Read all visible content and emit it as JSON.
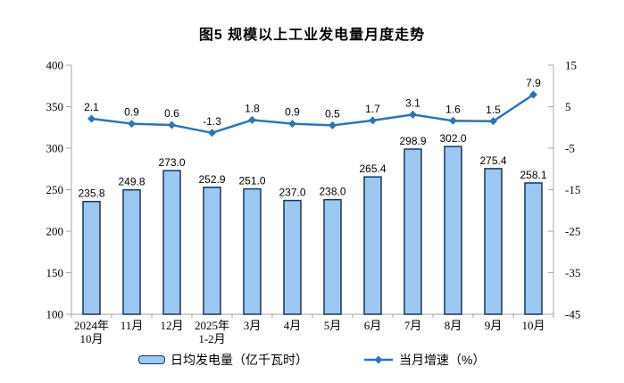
{
  "title": "图5 规模以上工业发电量月度走势",
  "legend": {
    "bar_label": "日均发电量（亿千瓦时）",
    "line_label": "当月增速（%）"
  },
  "colors": {
    "bar_fill": "#9CC7F0",
    "bar_border": "#17365D",
    "line": "#2E74B5",
    "axis": "#A6A6A6",
    "text": "#000000"
  },
  "chart_data": {
    "type": "combo",
    "title": "图5 规模以上工业发电量月度走势",
    "categories": [
      "2024年\n10月",
      "11月",
      "12月",
      "2025年\n1-2月",
      "3月",
      "4月",
      "5月",
      "6月",
      "7月",
      "8月",
      "9月",
      "10月"
    ],
    "series": [
      {
        "name": "日均发电量（亿千瓦时）",
        "type": "bar",
        "axis": "left",
        "values": [
          235.8,
          249.8,
          273.0,
          252.9,
          251.0,
          237.0,
          238.0,
          265.4,
          298.9,
          302.0,
          275.4,
          258.1
        ]
      },
      {
        "name": "当月增速（%）",
        "type": "line",
        "axis": "right",
        "values": [
          2.1,
          0.9,
          0.6,
          -1.3,
          1.8,
          0.9,
          0.5,
          1.7,
          3.1,
          1.6,
          1.5,
          7.9
        ]
      }
    ],
    "left_axis": {
      "min": 100,
      "max": 400,
      "ticks": [
        400,
        350,
        300,
        250,
        200,
        150,
        100
      ]
    },
    "right_axis": {
      "min": -45,
      "max": 15,
      "ticks": [
        15,
        5,
        -5,
        -15,
        -25,
        -35,
        -45
      ]
    },
    "grid": false,
    "legend_position": "bottom"
  }
}
